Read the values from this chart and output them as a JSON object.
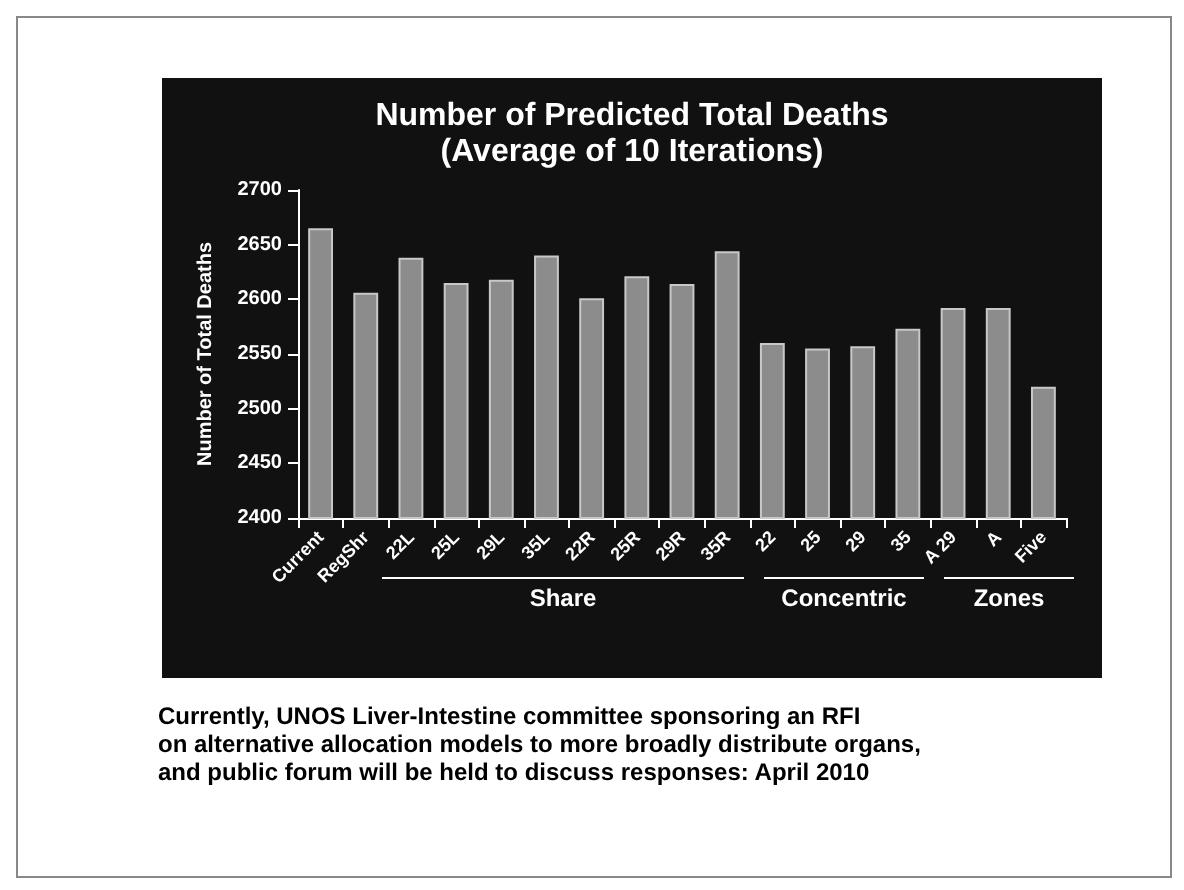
{
  "chart_data": {
    "type": "bar",
    "title": "Number of Predicted Total Deaths",
    "subtitle": "(Average of 10 Iterations)",
    "ylabel": "Number of Total Deaths",
    "categories": [
      "Current",
      "RegShr",
      "22L",
      "25L",
      "29L",
      "35L",
      "22R",
      "25R",
      "29R",
      "35R",
      "22",
      "25",
      "29",
      "35",
      "A 29",
      "A",
      "Five"
    ],
    "values": [
      2665,
      2606,
      2638,
      2615,
      2618,
      2640,
      2601,
      2621,
      2614,
      2644,
      2560,
      2555,
      2557,
      2573,
      2592,
      2592,
      2520
    ],
    "color": "#8c8c8c",
    "ylim": [
      2400,
      2700
    ],
    "yticks": [
      2400,
      2450,
      2500,
      2550,
      2600,
      2650,
      2700
    ],
    "grid": false,
    "annotations": [
      "Share",
      "Concentric",
      "Zones",
      "Currently, UNOS Liver-Intestine committee sponsoring an RFI\non alternative allocation models to more broadly distribute organs,\n and public forum will be held to discuss responses: April 2010"
    ]
  }
}
